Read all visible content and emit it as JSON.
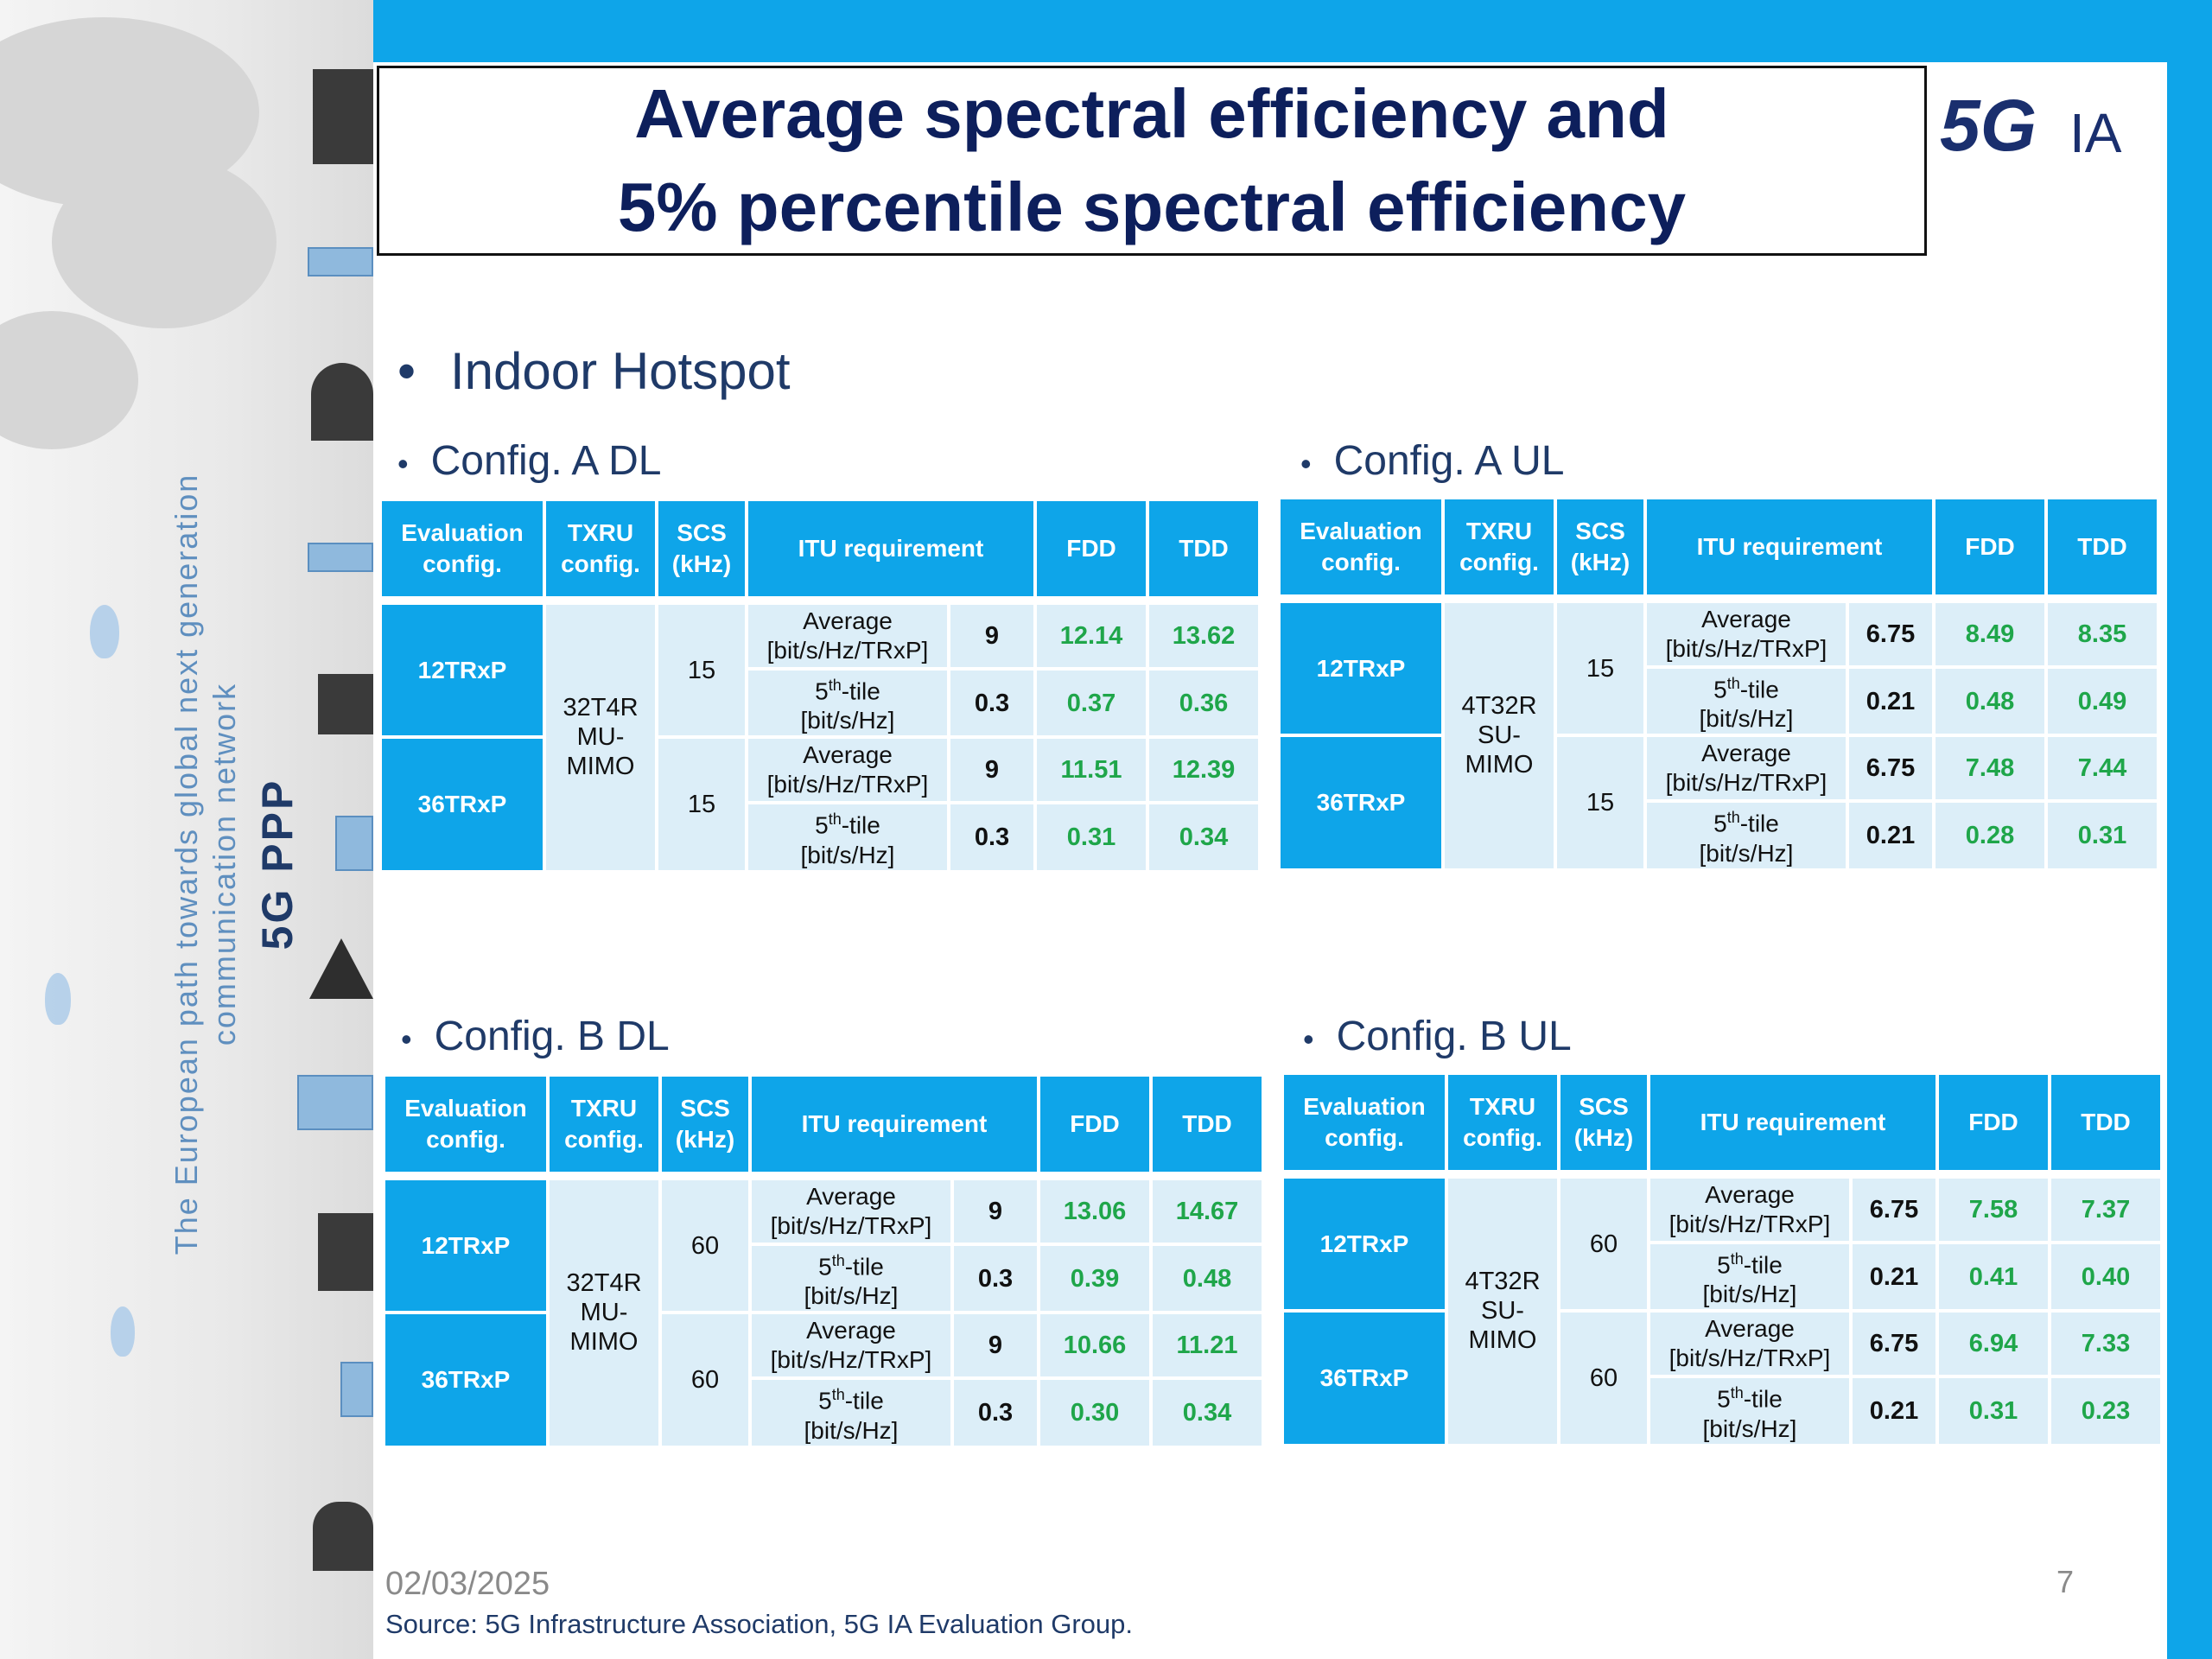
{
  "sidebar": {
    "title": "5G PPP",
    "subtitle_line1": "The European path towards global next generation",
    "subtitle_line2": "communication network"
  },
  "header": {
    "title_line1": "Average spectral efficiency and",
    "title_line2": "5% percentile spectral efficiency",
    "logo_text_5g": "5G",
    "logo_text_ia": "IA"
  },
  "main_bullet": "Indoor Hotspot",
  "columns": {
    "eval": "Evaluation config.",
    "txru": "TXRU config.",
    "scs": "SCS (kHz)",
    "itu": "ITU requirement",
    "fdd": "FDD",
    "tdd": "TDD"
  },
  "metrics": {
    "average": "Average [bit/s/Hz/TRxP]",
    "fifth_base": "5",
    "fifth_sup": "th",
    "fifth_rest": "-tile",
    "fifth_unit": "[bit/s/Hz]"
  },
  "tables": [
    {
      "label": "Config. A DL",
      "txru": "32T4R MU-MIMO",
      "groups": [
        {
          "eval": "12TRxP",
          "scs": "15",
          "rows": [
            {
              "req": "9",
              "fdd": "12.14",
              "tdd": "13.62"
            },
            {
              "req": "0.3",
              "fdd": "0.37",
              "tdd": "0.36"
            }
          ]
        },
        {
          "eval": "36TRxP",
          "scs": "15",
          "rows": [
            {
              "req": "9",
              "fdd": "11.51",
              "tdd": "12.39"
            },
            {
              "req": "0.3",
              "fdd": "0.31",
              "tdd": "0.34"
            }
          ]
        }
      ]
    },
    {
      "label": "Config. A UL",
      "txru": "4T32R SU-MIMO",
      "groups": [
        {
          "eval": "12TRxP",
          "scs": "15",
          "rows": [
            {
              "req": "6.75",
              "fdd": "8.49",
              "tdd": "8.35"
            },
            {
              "req": "0.21",
              "fdd": "0.48",
              "tdd": "0.49"
            }
          ]
        },
        {
          "eval": "36TRxP",
          "scs": "15",
          "rows": [
            {
              "req": "6.75",
              "fdd": "7.48",
              "tdd": "7.44"
            },
            {
              "req": "0.21",
              "fdd": "0.28",
              "tdd": "0.31"
            }
          ]
        }
      ]
    },
    {
      "label": "Config. B DL",
      "txru": "32T4R MU-MIMO",
      "groups": [
        {
          "eval": "12TRxP",
          "scs": "60",
          "rows": [
            {
              "req": "9",
              "fdd": "13.06",
              "tdd": "14.67"
            },
            {
              "req": "0.3",
              "fdd": "0.39",
              "tdd": "0.48"
            }
          ]
        },
        {
          "eval": "36TRxP",
          "scs": "60",
          "rows": [
            {
              "req": "9",
              "fdd": "10.66",
              "tdd": "11.21"
            },
            {
              "req": "0.3",
              "fdd": "0.30",
              "tdd": "0.34"
            }
          ]
        }
      ]
    },
    {
      "label": "Config. B UL",
      "txru": "4T32R SU-MIMO",
      "groups": [
        {
          "eval": "12TRxP",
          "scs": "60",
          "rows": [
            {
              "req": "6.75",
              "fdd": "7.58",
              "tdd": "7.37"
            },
            {
              "req": "0.21",
              "fdd": "0.41",
              "tdd": "0.40"
            }
          ]
        },
        {
          "eval": "36TRxP",
          "scs": "60",
          "rows": [
            {
              "req": "6.75",
              "fdd": "6.94",
              "tdd": "7.33"
            },
            {
              "req": "0.21",
              "fdd": "0.31",
              "tdd": "0.23"
            }
          ]
        }
      ]
    }
  ],
  "footer": {
    "date": "02/03/2025",
    "page": "7",
    "source": "Source: 5G Infrastructure Association, 5G IA Evaluation Group."
  },
  "colors": {
    "accent": "#0ea5e9",
    "title": "#0d1f5c",
    "cell_bg": "#dceef8",
    "value_green": "#1fa64a"
  }
}
